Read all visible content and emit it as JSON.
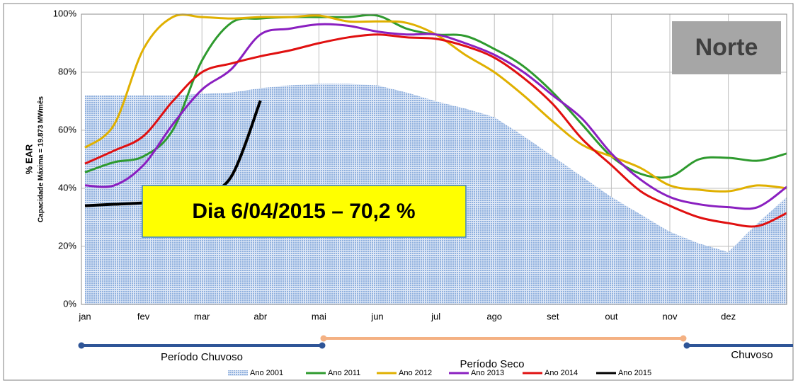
{
  "chart_data": {
    "type": "line",
    "y_label": "% EAR",
    "y_sublabel": "Capacidade Máxima = 19.873 MWmês",
    "region_label": "Norte",
    "annotation": "Dia 6/04/2015 – 70,2 %",
    "periods": [
      "Período Chuvoso",
      "Período Seco",
      "Chuvoso"
    ],
    "categories": [
      "jan",
      null,
      "fev",
      null,
      "mar",
      null,
      "abr",
      null,
      "mai",
      null,
      "jun",
      null,
      "jul",
      null,
      "ago",
      null,
      "set",
      null,
      "out",
      null,
      "nov",
      null,
      "dez",
      null,
      null
    ],
    "ylim": [
      0,
      100
    ],
    "yticks": [
      {
        "value": 0,
        "label": "0%"
      },
      {
        "value": 20,
        "label": "20%"
      },
      {
        "value": 40,
        "label": "40%"
      },
      {
        "value": 60,
        "label": "60%"
      },
      {
        "value": 80,
        "label": "80%"
      },
      {
        "value": 100,
        "label": "100%"
      }
    ],
    "grid": true,
    "series": [
      {
        "name": "Ano 2001",
        "kind": "area",
        "color": "#9db8e0",
        "values": [
          72,
          72,
          72,
          72,
          72.5,
          73,
          74.5,
          75.5,
          76,
          76,
          75.5,
          73,
          70,
          67.5,
          64.5,
          58,
          51,
          44,
          37,
          31,
          25,
          21,
          18,
          28,
          37
        ]
      },
      {
        "name": "Ano 2011",
        "color": "#2e9a2e",
        "values": [
          45.5,
          49,
          51,
          60,
          84,
          97,
          98.5,
          99,
          99,
          99,
          99.5,
          95,
          93,
          92.5,
          88,
          82,
          73,
          62,
          51,
          45,
          44,
          50,
          50.5,
          49.5,
          52
        ]
      },
      {
        "name": "Ano 2012",
        "color": "#e0b000",
        "values": [
          54,
          62,
          88,
          99,
          99,
          98.5,
          99,
          99,
          99.5,
          97.5,
          97.5,
          97,
          93,
          86,
          80,
          72,
          63,
          55,
          51,
          47,
          41,
          39.5,
          39,
          41,
          40
        ]
      },
      {
        "name": "Ano 2013",
        "color": "#8a1fc0",
        "values": [
          41,
          41,
          48,
          62,
          74,
          81,
          93,
          95,
          96.5,
          96,
          94,
          93,
          93,
          90,
          86,
          80,
          72,
          64,
          52,
          43,
          37,
          34.5,
          33.5,
          33.5,
          40.5
        ]
      },
      {
        "name": "Ano 2014",
        "color": "#e01010",
        "values": [
          48.5,
          53,
          58,
          70,
          80,
          83,
          85.5,
          87.5,
          90,
          92,
          93,
          92,
          91.5,
          89,
          85,
          78,
          69,
          57,
          48,
          39,
          34,
          30,
          28,
          27,
          31.5
        ]
      },
      {
        "name": "Ano 2015",
        "color": "#000000",
        "values": [
          34,
          34.5,
          35,
          36,
          38,
          44,
          70.2,
          null,
          null,
          null,
          null,
          null,
          null,
          null,
          null,
          null,
          null,
          null,
          null,
          null,
          null,
          null,
          null,
          null,
          null
        ]
      }
    ]
  }
}
